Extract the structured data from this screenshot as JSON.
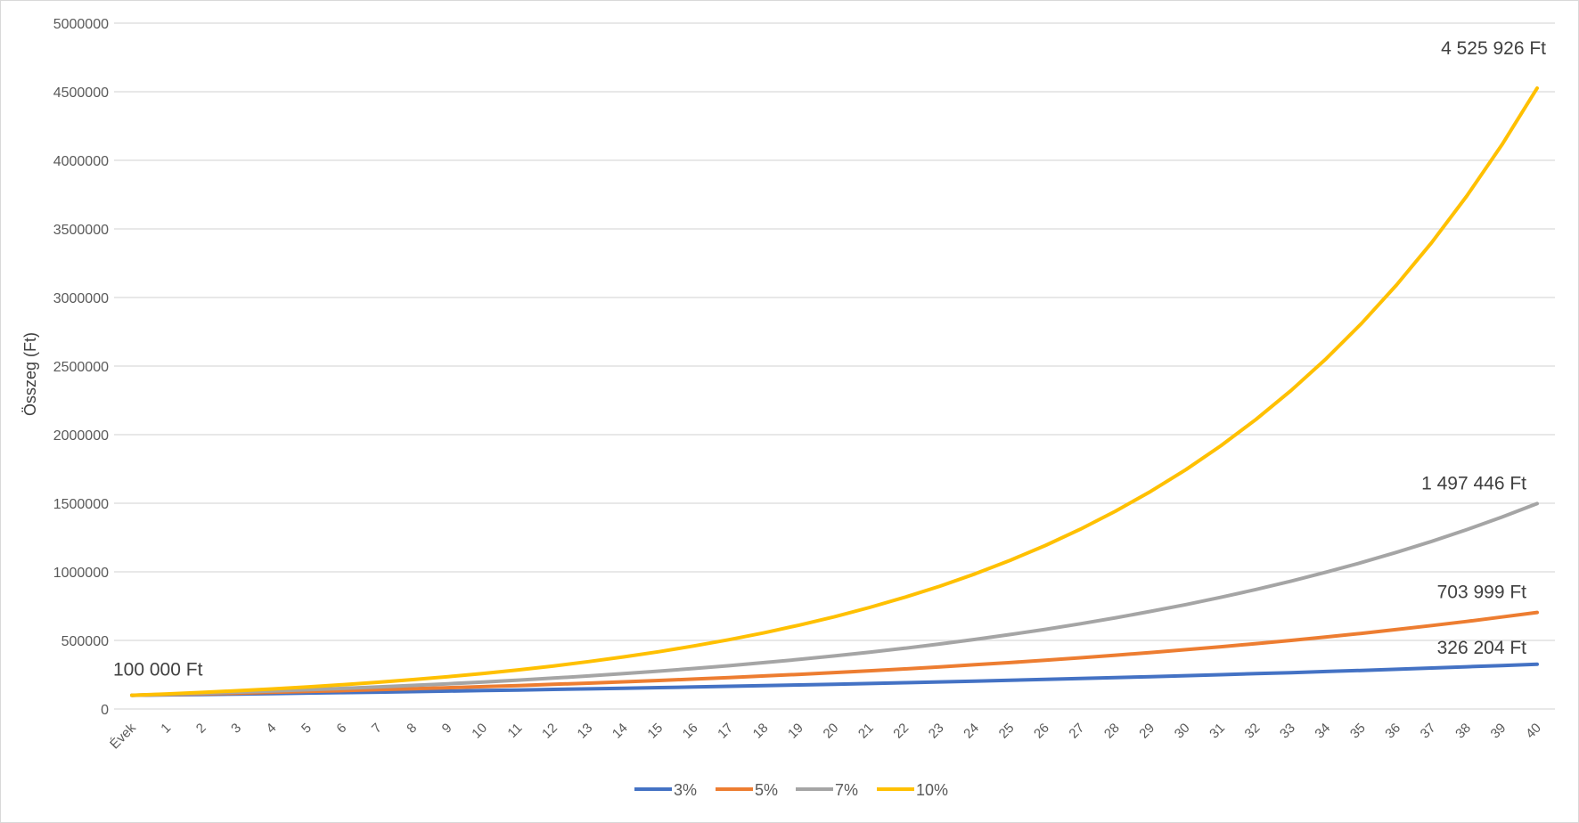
{
  "chart_data": {
    "type": "line",
    "title": "",
    "xlabel": "",
    "ylabel": "Összeg (Ft)",
    "ylim": [
      0,
      5000000
    ],
    "yticks": [
      0,
      500000,
      1000000,
      1500000,
      2000000,
      2500000,
      3000000,
      3500000,
      4000000,
      4500000,
      5000000
    ],
    "ytick_labels": [
      "0",
      "500000",
      "1000000",
      "1500000",
      "2000000",
      "2500000",
      "3000000",
      "3500000",
      "4000000",
      "4500000",
      "5000000"
    ],
    "categories": [
      "Évek",
      "1",
      "2",
      "3",
      "4",
      "5",
      "6",
      "7",
      "8",
      "9",
      "10",
      "11",
      "12",
      "13",
      "14",
      "15",
      "16",
      "17",
      "18",
      "19",
      "20",
      "21",
      "22",
      "23",
      "24",
      "25",
      "26",
      "27",
      "28",
      "29",
      "30",
      "31",
      "32",
      "33",
      "34",
      "35",
      "36",
      "37",
      "38",
      "39",
      "40"
    ],
    "grid": true,
    "legend_position": "bottom",
    "series": [
      {
        "name": "3%",
        "color": "#4472c4",
        "values": [
          100000,
          103000,
          106090,
          109273,
          112551,
          115927,
          119405,
          122987,
          126677,
          130477,
          134392,
          138423,
          142576,
          146853,
          151259,
          155797,
          160471,
          165285,
          170243,
          175351,
          180611,
          186029,
          191610,
          197359,
          203279,
          209378,
          215659,
          222129,
          228793,
          235657,
          242726,
          250008,
          257508,
          265234,
          273191,
          281386,
          289828,
          298523,
          307478,
          316703,
          326204
        ]
      },
      {
        "name": "5%",
        "color": "#ed7d31",
        "values": [
          100000,
          105000,
          110250,
          115763,
          121551,
          127628,
          134010,
          140710,
          147746,
          155133,
          162889,
          171034,
          179586,
          188565,
          197993,
          207893,
          218287,
          229202,
          240662,
          252695,
          265330,
          278596,
          292526,
          307152,
          322510,
          338635,
          355567,
          373346,
          392013,
          411614,
          432194,
          453804,
          476494,
          500319,
          525335,
          551602,
          579182,
          608141,
          638548,
          670475,
          703999
        ]
      },
      {
        "name": "7%",
        "color": "#a5a5a5",
        "values": [
          100000,
          107000,
          114490,
          122504,
          131080,
          140255,
          150073,
          160578,
          171819,
          183846,
          196715,
          210485,
          225219,
          240985,
          257853,
          275903,
          295216,
          315882,
          337993,
          361653,
          386968,
          414056,
          443040,
          474053,
          507237,
          542743,
          580735,
          621387,
          664884,
          711426,
          761226,
          814511,
          871527,
          932534,
          997811,
          1067658,
          1142394,
          1222362,
          1307927,
          1399482,
          1497446
        ]
      },
      {
        "name": "10%",
        "color": "#ffc000",
        "values": [
          100000,
          110000,
          121000,
          133100,
          146410,
          161051,
          177156,
          194872,
          214359,
          235795,
          259374,
          285312,
          313843,
          345227,
          379750,
          417725,
          459497,
          505447,
          555992,
          611591,
          672750,
          740025,
          814027,
          895430,
          984973,
          1083471,
          1191818,
          1311000,
          1442099,
          1586309,
          1744940,
          1919434,
          2111378,
          2322515,
          2554767,
          2810244,
          3091268,
          3400395,
          3740435,
          4114478,
          4525926
        ]
      }
    ],
    "annotations": [
      {
        "text": "100 000 Ft",
        "x": "Évek",
        "value": 100000
      },
      {
        "text": "326 204 Ft",
        "x": "40",
        "value": 326204,
        "series": "3%"
      },
      {
        "text": "703 999 Ft",
        "x": "40",
        "value": 703999,
        "series": "5%"
      },
      {
        "text": "1 497 446 Ft",
        "x": "40",
        "value": 1497446,
        "series": "7%"
      },
      {
        "text": "4 525 926 Ft",
        "x": "40",
        "value": 4525926,
        "series": "10%"
      }
    ]
  }
}
